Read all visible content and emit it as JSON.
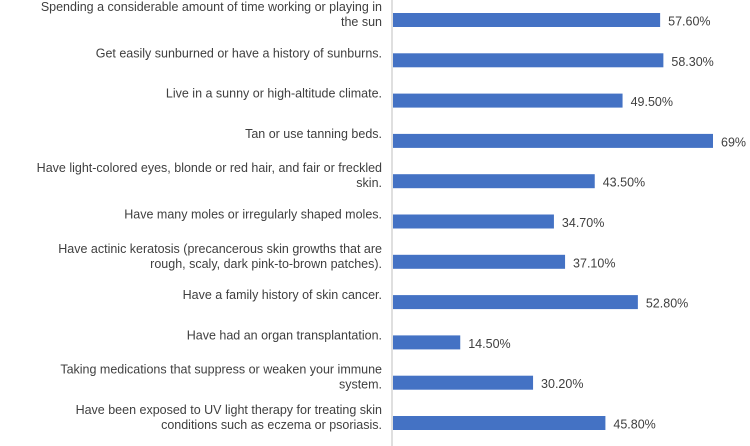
{
  "chart_data": {
    "type": "bar",
    "orientation": "horizontal",
    "title": "",
    "xlabel": "",
    "ylabel": "",
    "categories": [
      [
        "Spending a considerable amount of time working or playing in",
        "the sun"
      ],
      [
        "Get easily sunburned or have a history of sunburns."
      ],
      [
        "Live in a sunny or high-altitude climate."
      ],
      [
        "Tan or use tanning beds."
      ],
      [
        "Have light-colored eyes, blonde or red hair, and fair or freckled",
        "skin."
      ],
      [
        "Have many moles or irregularly shaped moles."
      ],
      [
        "Have actinic keratosis (precancerous skin growths that are",
        "rough, scaly, dark pink-to-brown patches)."
      ],
      [
        "Have a family history of skin cancer."
      ],
      [
        "Have had an organ transplantation."
      ],
      [
        "Taking medications that suppress or weaken your immune",
        "system."
      ],
      [
        "Have been exposed to UV light therapy for treating skin",
        "conditions such as eczema or psoriasis."
      ]
    ],
    "values": [
      57.6,
      58.3,
      49.5,
      69,
      43.5,
      34.7,
      37.1,
      52.8,
      14.5,
      30.2,
      45.8
    ],
    "value_labels": [
      "57.60%",
      "58.30%",
      "49.50%",
      "69%",
      "43.50%",
      "34.70%",
      "37.10%",
      "52.80%",
      "14.50%",
      "30.20%",
      "45.80%"
    ],
    "xlim": [
      0,
      69
    ],
    "grid": false,
    "legend": "none",
    "bar_color": "#4472c4",
    "axis_color": "#bfbfbf",
    "text_color": "#3f3f3f"
  }
}
